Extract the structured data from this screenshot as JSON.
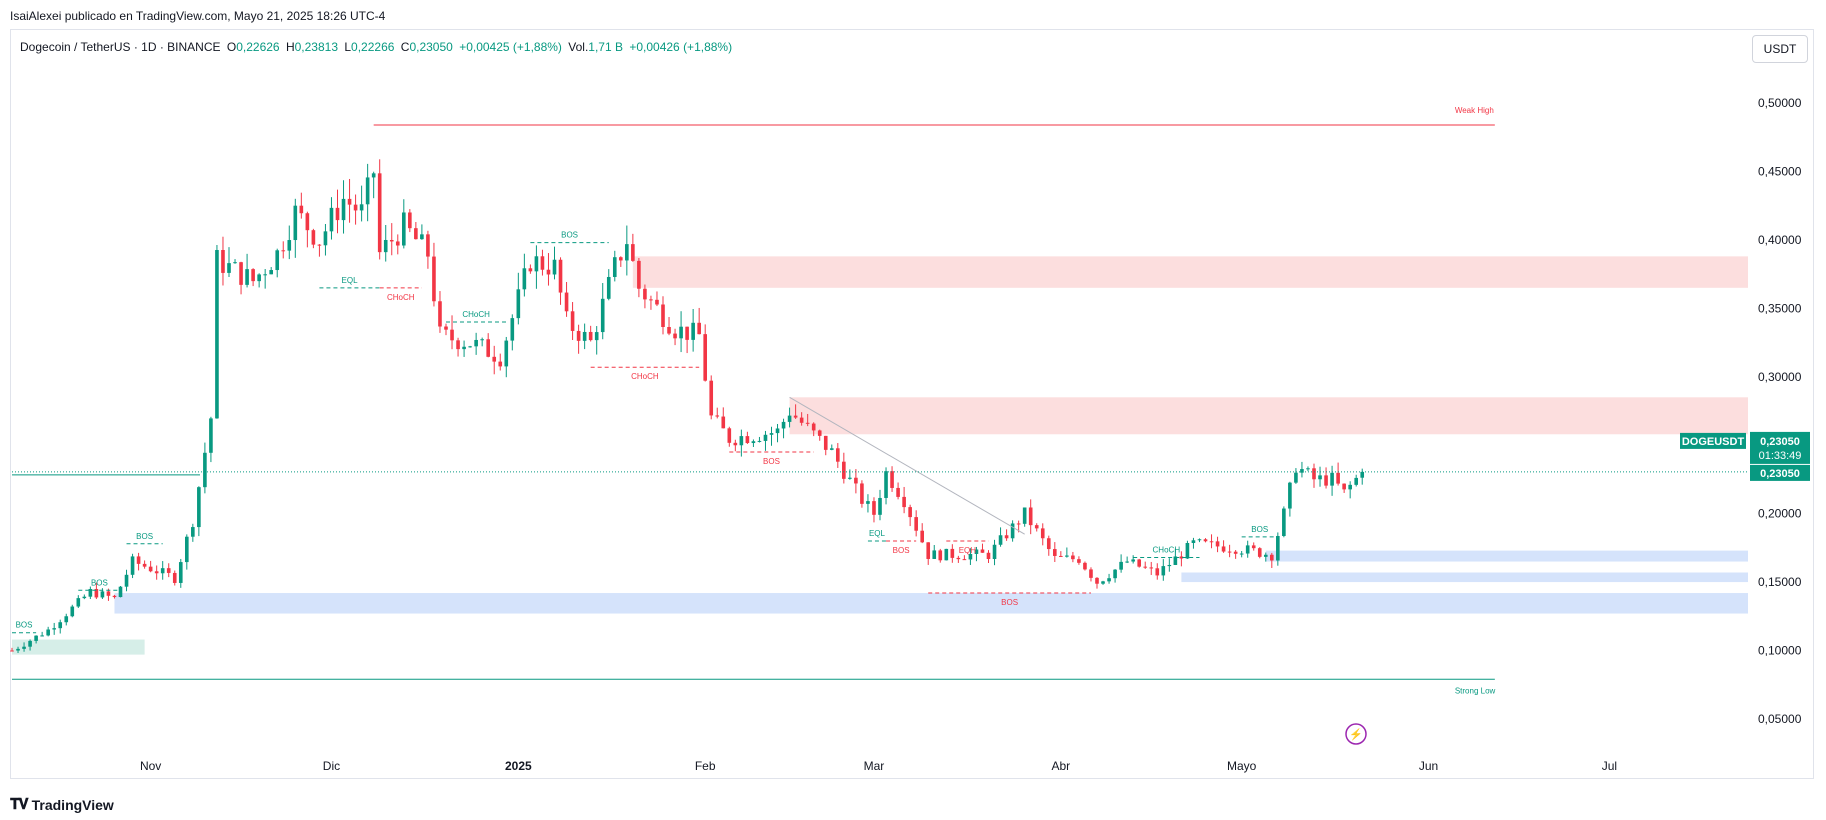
{
  "publisher": "IsaiAlexei publicado en TradingView.com, Mayo 21, 2025 18:26 UTC-4",
  "legend": {
    "symbol": "Dogecoin / TetherUS · 1D · BINANCE",
    "o_label": "O",
    "o": "0,22626",
    "h_label": "H",
    "h": "0,23813",
    "l_label": "L",
    "l": "0,22266",
    "c_label": "C",
    "c": "0,23050",
    "chg": "+0,00425 (+1,88%)",
    "vol_label": "Vol.",
    "vol": "1,71 B",
    "vol_chg": "+0,00426 (+1,88%)"
  },
  "currency": "USDT",
  "footer_brand": "TradingView",
  "colors": {
    "up": "#089981",
    "down": "#f23645",
    "supply": "#fcdede",
    "demand": "#d5e3fb",
    "demand_green": "#d6eee8"
  },
  "chart_data": {
    "type": "candlestick",
    "symbol": "DOGEUSDT",
    "timeframe": "1D",
    "y_ticks": [
      "0,50000",
      "0,45000",
      "0,40000",
      "0,35000",
      "0,30000",
      "0,25000",
      "0,20000",
      "0,15000",
      "0,10000",
      "0,05000"
    ],
    "y_tick_values": [
      0.5,
      0.45,
      0.4,
      0.35,
      0.3,
      0.25,
      0.2,
      0.15,
      0.1,
      0.05
    ],
    "ylim": [
      0.02,
      0.53
    ],
    "x_ticks": [
      {
        "label": "Nov",
        "date": "2024-11-01",
        "bold": false
      },
      {
        "label": "Dic",
        "date": "2024-12-01",
        "bold": false
      },
      {
        "label": "2025",
        "date": "2025-01-01",
        "bold": true
      },
      {
        "label": "Feb",
        "date": "2025-02-01",
        "bold": false
      },
      {
        "label": "Mar",
        "date": "2025-03-01",
        "bold": false
      },
      {
        "label": "Abr",
        "date": "2025-04-01",
        "bold": false
      },
      {
        "label": "Mayo",
        "date": "2025-05-01",
        "bold": false
      },
      {
        "label": "Jun",
        "date": "2025-06-01",
        "bold": false
      },
      {
        "label": "Jul",
        "date": "2025-07-01",
        "bold": false
      }
    ],
    "xlim": [
      "2024-10-09",
      "2025-07-24"
    ],
    "price_label": {
      "symbol": "DOGEUSDT",
      "value": "0,23050",
      "countdown": "01:33:49",
      "value2": "0,23050",
      "price": 0.2305
    },
    "keypoints": [
      [
        "2024-10-09",
        0.1
      ],
      [
        "2024-10-15",
        0.115
      ],
      [
        "2024-10-22",
        0.143
      ],
      [
        "2024-10-26",
        0.138
      ],
      [
        "2024-10-29",
        0.165
      ],
      [
        "2024-11-01",
        0.16
      ],
      [
        "2024-11-05",
        0.153
      ],
      [
        "2024-11-08",
        0.195
      ],
      [
        "2024-11-11",
        0.27
      ],
      [
        "2024-11-12",
        0.385
      ],
      [
        "2024-11-14",
        0.38
      ],
      [
        "2024-11-18",
        0.37
      ],
      [
        "2024-11-22",
        0.39
      ],
      [
        "2024-11-25",
        0.42
      ],
      [
        "2024-11-29",
        0.4
      ],
      [
        "2024-12-03",
        0.43
      ],
      [
        "2024-12-06",
        0.42
      ],
      [
        "2024-12-08",
        0.45
      ],
      [
        "2024-12-09",
        0.39
      ],
      [
        "2024-12-13",
        0.41
      ],
      [
        "2024-12-17",
        0.39
      ],
      [
        "2024-12-19",
        0.33
      ],
      [
        "2024-12-24",
        0.325
      ],
      [
        "2024-12-29",
        0.315
      ],
      [
        "2025-01-03",
        0.385
      ],
      [
        "2025-01-07",
        0.38
      ],
      [
        "2025-01-09",
        0.34
      ],
      [
        "2025-01-13",
        0.325
      ],
      [
        "2025-01-17",
        0.38
      ],
      [
        "2025-01-19",
        0.4
      ],
      [
        "2025-01-21",
        0.365
      ],
      [
        "2025-01-27",
        0.335
      ],
      [
        "2025-01-31",
        0.33
      ],
      [
        "2025-02-02",
        0.27
      ],
      [
        "2025-02-05",
        0.255
      ],
      [
        "2025-02-13",
        0.26
      ],
      [
        "2025-02-15",
        0.275
      ],
      [
        "2025-02-22",
        0.245
      ],
      [
        "2025-02-27",
        0.21
      ],
      [
        "2025-03-01",
        0.2
      ],
      [
        "2025-03-03",
        0.23
      ],
      [
        "2025-03-06",
        0.21
      ],
      [
        "2025-03-10",
        0.17
      ],
      [
        "2025-03-14",
        0.17
      ],
      [
        "2025-03-20",
        0.17
      ],
      [
        "2025-03-26",
        0.2
      ],
      [
        "2025-03-31",
        0.167
      ],
      [
        "2025-04-04",
        0.167
      ],
      [
        "2025-04-07",
        0.15
      ],
      [
        "2025-04-12",
        0.165
      ],
      [
        "2025-04-17",
        0.156
      ],
      [
        "2025-04-23",
        0.178
      ],
      [
        "2025-04-30",
        0.175
      ],
      [
        "2025-05-06",
        0.17
      ],
      [
        "2025-05-08",
        0.2
      ],
      [
        "2025-05-10",
        0.235
      ],
      [
        "2025-05-13",
        0.225
      ],
      [
        "2025-05-16",
        0.225
      ],
      [
        "2025-05-18",
        0.215
      ],
      [
        "2025-05-21",
        0.2305
      ]
    ],
    "zones": [
      {
        "kind": "supply",
        "x0": "2025-01-20",
        "x1": "2025-07-24",
        "y0": 0.365,
        "y1": 0.388
      },
      {
        "kind": "supply",
        "x0": "2025-02-15",
        "x1": "2025-07-24",
        "y0": 0.258,
        "y1": 0.285
      },
      {
        "kind": "demand",
        "x0": "2025-05-05",
        "x1": "2025-07-24",
        "y0": 0.165,
        "y1": 0.173
      },
      {
        "kind": "demand",
        "x0": "2025-04-21",
        "x1": "2025-07-24",
        "y0": 0.15,
        "y1": 0.157
      },
      {
        "kind": "demand",
        "x0": "2024-10-26",
        "x1": "2025-07-24",
        "y0": 0.127,
        "y1": 0.142
      },
      {
        "kind": "demand_green",
        "x0": "2024-10-09",
        "x1": "2024-10-31",
        "y0": 0.097,
        "y1": 0.108
      }
    ],
    "levels": [
      {
        "label": "Weak High",
        "color": "#f23645",
        "x0": "2024-12-08",
        "x1": "2025-06-12",
        "y": 0.484
      },
      {
        "label": "Strong Low",
        "color": "#089981",
        "x0": "2024-10-09",
        "x1": "2025-06-12",
        "y": 0.079
      }
    ],
    "structure": [
      {
        "label": "BOS",
        "color": "#089981",
        "x0": "2024-10-09",
        "x1": "2024-10-13",
        "y": 0.113,
        "dashed": true
      },
      {
        "label": "BOS",
        "color": "#089981",
        "x0": "2024-10-20",
        "x1": "2024-10-27",
        "y": 0.144,
        "dashed": true
      },
      {
        "label": "BOS",
        "color": "#089981",
        "x0": "2024-10-28",
        "x1": "2024-11-03",
        "y": 0.178,
        "dashed": true
      },
      {
        "label": "EQL",
        "color": "#089981",
        "x0": "2024-11-29",
        "x1": "2024-12-09",
        "y": 0.365,
        "dashed": true
      },
      {
        "label": "CHoCH",
        "color": "#f23645",
        "x0": "2024-12-09",
        "x1": "2024-12-16",
        "y": 0.365,
        "dashed": true
      },
      {
        "label": "CHoCH",
        "color": "#089981",
        "x0": "2024-12-20",
        "x1": "2024-12-30",
        "y": 0.34,
        "dashed": true
      },
      {
        "label": "BOS",
        "color": "#089981",
        "x0": "2025-01-03",
        "x1": "2025-01-16",
        "y": 0.398,
        "dashed": true
      },
      {
        "label": "CHoCH",
        "color": "#f23645",
        "x0": "2025-01-13",
        "x1": "2025-01-31",
        "y": 0.307,
        "dashed": true
      },
      {
        "label": "BOS",
        "color": "#f23645",
        "x0": "2025-02-05",
        "x1": "2025-02-19",
        "y": 0.245,
        "dashed": true
      },
      {
        "label": "EQL",
        "color": "#089981",
        "x0": "2025-02-28",
        "x1": "2025-03-03",
        "y": 0.18,
        "dashed": true
      },
      {
        "label": "BOS",
        "color": "#f23645",
        "x0": "2025-03-03",
        "x1": "2025-03-08",
        "y": 0.18,
        "dashed": true
      },
      {
        "label": "EQH",
        "color": "#f23645",
        "x0": "2025-03-13",
        "x1": "2025-03-20",
        "y": 0.18,
        "dashed": true
      },
      {
        "label": "BOS",
        "color": "#f23645",
        "x0": "2025-03-10",
        "x1": "2025-04-06",
        "y": 0.142,
        "dashed": true
      },
      {
        "label": "CHoCH",
        "color": "#089981",
        "x0": "2025-04-13",
        "x1": "2025-04-24",
        "y": 0.168,
        "dashed": true
      },
      {
        "label": "BOS",
        "color": "#089981",
        "x0": "2025-05-01",
        "x1": "2025-05-07",
        "y": 0.183,
        "dashed": true
      }
    ],
    "trendline": {
      "x0": "2025-02-15",
      "y0": 0.285,
      "x1": "2025-03-26",
      "y1": 0.185
    }
  }
}
